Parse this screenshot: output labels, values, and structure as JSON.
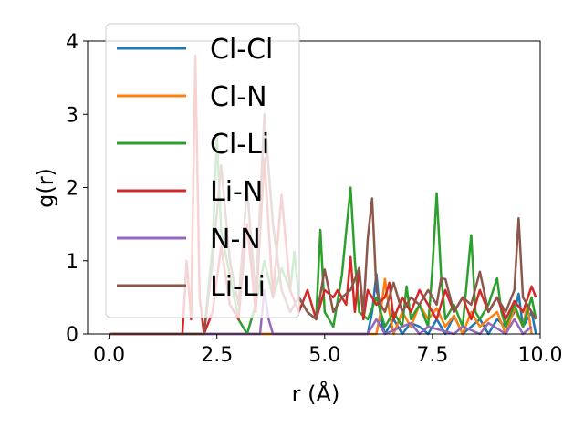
{
  "chart_data": {
    "type": "line",
    "xlabel": "r (Å)",
    "ylabel": "g(r)",
    "xlim": [
      -0.5,
      10.0
    ],
    "ylim": [
      0,
      4
    ],
    "xticks": [
      0.0,
      2.5,
      5.0,
      7.5,
      10.0
    ],
    "xtick_labels": [
      "0.0",
      "2.5",
      "5.0",
      "7.5",
      "10.0"
    ],
    "yticks": [
      0,
      1,
      2,
      3,
      4
    ],
    "ytick_labels": [
      "0",
      "1",
      "2",
      "3",
      "4"
    ],
    "grid": false,
    "legend_position": "top-left",
    "series": [
      {
        "name": "Cl-Cl",
        "color": "#1f77b4",
        "x": [
          0,
          6.0,
          6.1,
          6.2,
          6.3,
          6.4,
          6.6,
          6.8,
          7.0,
          7.2,
          7.4,
          7.6,
          7.8,
          8.0,
          8.2,
          8.4,
          8.6,
          8.8,
          9.0,
          9.2,
          9.4,
          9.5,
          9.6,
          9.8,
          9.9
        ],
        "y": [
          0,
          0,
          0.3,
          0.82,
          0.2,
          0,
          0.2,
          0,
          0.15,
          0.1,
          0,
          0.2,
          0,
          0.25,
          0,
          0.1,
          0.2,
          0,
          0.2,
          0.1,
          0.3,
          0.55,
          0.1,
          0.3,
          0
        ]
      },
      {
        "name": "Cl-N",
        "color": "#ff7f0e",
        "x": [
          0,
          6.2,
          6.3,
          6.4,
          6.5,
          6.6,
          6.8,
          7.0,
          7.2,
          7.4,
          7.6,
          7.8,
          8.0,
          8.2,
          8.4,
          8.6,
          8.8,
          9.0,
          9.2,
          9.4,
          9.6,
          9.7,
          9.8
        ],
        "y": [
          0,
          0,
          0.3,
          0.75,
          0.3,
          0,
          0.3,
          0.1,
          0.4,
          0.2,
          0.35,
          0.1,
          0.25,
          0,
          0.3,
          0.1,
          0.2,
          0.3,
          0,
          0.35,
          0.1,
          0.4,
          0
        ]
      },
      {
        "name": "Cl-Li",
        "color": "#2ca02c",
        "x": [
          0,
          2.2,
          2.4,
          2.5,
          2.6,
          2.8,
          3.0,
          3.2,
          3.4,
          3.6,
          3.8,
          4.0,
          4.2,
          4.3,
          4.4,
          4.6,
          4.8,
          4.9,
          5.0,
          5.2,
          5.4,
          5.5,
          5.6,
          5.7,
          5.8,
          6.0,
          6.2,
          6.4,
          6.6,
          6.8,
          6.9,
          7.0,
          7.2,
          7.4,
          7.5,
          7.6,
          7.7,
          7.8,
          8.0,
          8.2,
          8.4,
          8.5,
          8.6,
          8.8,
          9.0,
          9.1,
          9.2,
          9.4,
          9.6,
          9.8,
          9.9
        ],
        "y": [
          0,
          0,
          1.2,
          2.7,
          1.4,
          0.8,
          0.2,
          0,
          0.4,
          1.0,
          0.5,
          0.9,
          0.6,
          1.12,
          0.5,
          0.3,
          0.2,
          1.42,
          0.3,
          0.1,
          0.8,
          1.4,
          2.0,
          1.0,
          0.3,
          0.2,
          0.5,
          0.1,
          0.3,
          0.1,
          0.65,
          0.2,
          0.4,
          0.1,
          0.9,
          1.92,
          0.8,
          0.2,
          0.4,
          0.1,
          1.35,
          0.3,
          0.2,
          0.4,
          0.76,
          0.3,
          0.1,
          0.4,
          0.1,
          0.5,
          0.2
        ]
      },
      {
        "name": "Li-N",
        "color": "#d62728",
        "x": [
          0,
          1.7,
          1.8,
          1.9,
          2.0,
          2.1,
          2.2,
          2.4,
          2.6,
          2.8,
          3.0,
          3.2,
          3.4,
          3.6,
          3.8,
          4.0,
          4.2,
          4.4,
          4.6,
          4.8,
          5.0,
          5.1,
          5.2,
          5.3,
          5.4,
          5.5,
          5.6,
          5.7,
          5.8,
          5.9,
          6.0,
          6.2,
          6.4,
          6.5,
          6.6,
          6.8,
          7.0,
          7.2,
          7.4,
          7.6,
          7.8,
          8.0,
          8.2,
          8.4,
          8.6,
          8.8,
          9.0,
          9.2,
          9.4,
          9.6,
          9.8,
          9.9
        ],
        "y": [
          0,
          0,
          1.0,
          0.2,
          3.8,
          0.5,
          0,
          0.3,
          1.2,
          0.4,
          0.2,
          1.5,
          0.3,
          2.4,
          0.5,
          1.9,
          0.6,
          0.3,
          0.6,
          0.2,
          0.6,
          0.55,
          0.5,
          0.6,
          0.5,
          0.4,
          1.05,
          0.3,
          0.9,
          0.2,
          0.6,
          0.4,
          0.5,
          0.7,
          0.2,
          0.5,
          0.3,
          0.6,
          0.4,
          0.2,
          0.6,
          0.3,
          0.5,
          0.2,
          0.6,
          0.3,
          0.5,
          0.2,
          0.45,
          0.3,
          0.65,
          0.5
        ]
      },
      {
        "name": "N-N",
        "color": "#9467bd",
        "x": [
          0,
          3.5,
          3.6,
          3.7,
          3.8,
          6.0,
          6.2,
          6.4,
          7.0,
          7.2,
          7.4,
          8.0,
          8.2,
          8.6,
          8.8,
          9.2,
          9.4,
          9.6,
          9.8
        ],
        "y": [
          0,
          0,
          0.6,
          0.2,
          0,
          0,
          0.2,
          0,
          0.15,
          0,
          0.1,
          0,
          0.1,
          0,
          0.15,
          0,
          0.2,
          0,
          0.1
        ]
      },
      {
        "name": "Li-Li",
        "color": "#8c564b",
        "x": [
          0,
          2.2,
          2.4,
          2.6,
          2.8,
          3.0,
          3.2,
          3.4,
          3.6,
          3.8,
          4.0,
          4.2,
          4.4,
          4.6,
          4.8,
          5.0,
          5.2,
          5.4,
          5.6,
          5.8,
          5.9,
          6.0,
          6.1,
          6.2,
          6.3,
          6.4,
          6.6,
          6.8,
          7.0,
          7.2,
          7.4,
          7.6,
          7.7,
          7.8,
          8.0,
          8.2,
          8.4,
          8.6,
          8.8,
          9.0,
          9.2,
          9.4,
          9.5,
          9.6,
          9.8,
          9.9
        ],
        "y": [
          0,
          0,
          1.0,
          2.3,
          1.0,
          0.4,
          2.0,
          0.5,
          3.0,
          1.5,
          0.6,
          0.3,
          0.5,
          0.3,
          0.2,
          0.88,
          0.3,
          0.5,
          0.6,
          0.9,
          0.3,
          1.3,
          1.85,
          0.6,
          0.4,
          0.3,
          0.7,
          0.3,
          0.5,
          0.4,
          0.6,
          0.4,
          0.76,
          0.75,
          0.3,
          0.5,
          0.4,
          0.85,
          0.3,
          0.5,
          0.3,
          0.6,
          1.58,
          0.5,
          0.3,
          0.2
        ]
      }
    ]
  }
}
